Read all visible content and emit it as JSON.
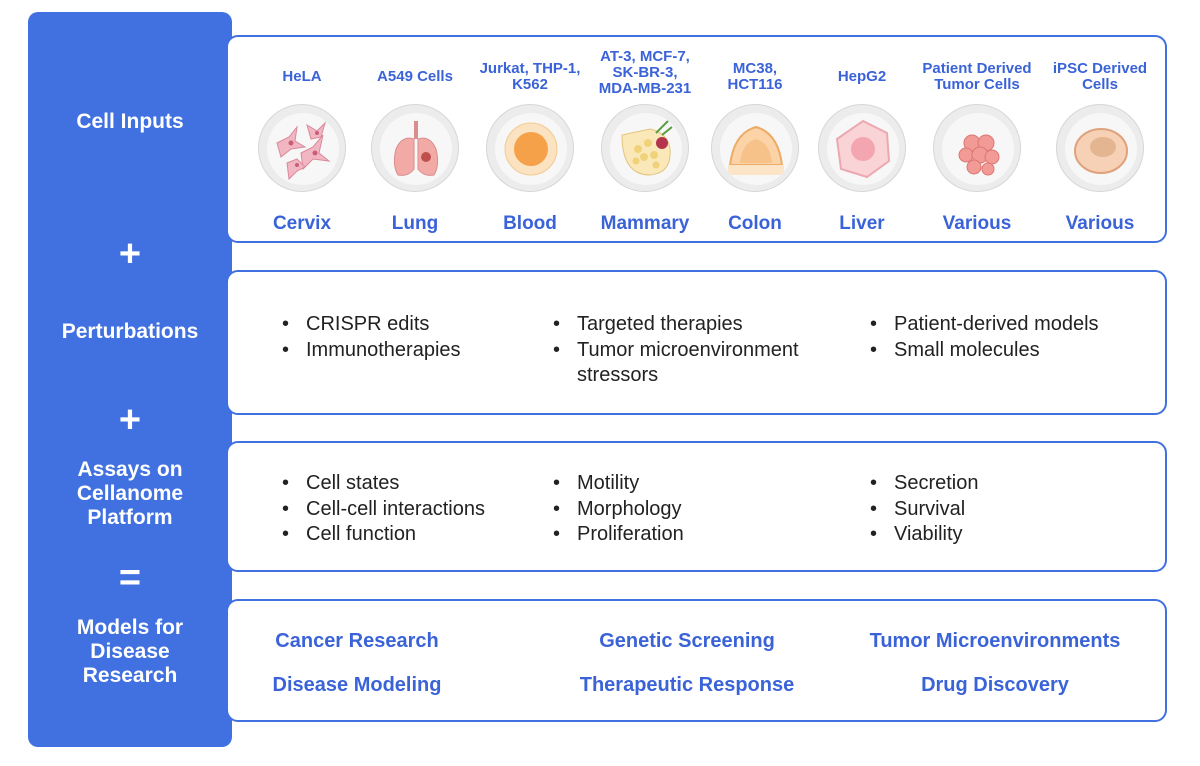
{
  "sections": {
    "cell_inputs": "Cell Inputs",
    "perturbations": "Perturbations",
    "assays": "Assays on\nCellanome\nPlatform",
    "models": "Models for\nDisease\nResearch"
  },
  "operators": {
    "plus1": "+",
    "plus2": "+",
    "equals": "="
  },
  "cells": [
    {
      "name": "HeLA",
      "organ": "Cervix",
      "icon": "hela-cells-icon"
    },
    {
      "name": "A549 Cells",
      "organ": "Lung",
      "icon": "lung-icon"
    },
    {
      "name": "Jurkat, THP-1,\nK562",
      "organ": "Blood",
      "icon": "blood-cell-icon"
    },
    {
      "name": "AT-3, MCF-7,\nSK-BR-3,\nMDA-MB-231",
      "organ": "Mammary",
      "icon": "mammary-gland-icon"
    },
    {
      "name": "MC38,\nHCT116",
      "organ": "Colon",
      "icon": "colon-icon"
    },
    {
      "name": "HepG2",
      "organ": "Liver",
      "icon": "liver-cell-icon"
    },
    {
      "name": "Patient Derived\nTumor Cells",
      "organ": "Various",
      "icon": "tumor-cells-icon"
    },
    {
      "name": "iPSC Derived\nCells",
      "organ": "Various",
      "icon": "ipsc-cell-icon"
    }
  ],
  "perturbations": [
    [
      "CRISPR edits",
      "Immunotherapies"
    ],
    [
      "Targeted therapies",
      "Tumor microenvironment\nstressors"
    ],
    [
      "Patient-derived models",
      "Small molecules"
    ]
  ],
  "assays": [
    [
      "Cell states",
      "Cell-cell interactions",
      "Cell function"
    ],
    [
      "Motility",
      "Morphology",
      "Proliferation"
    ],
    [
      "Secretion",
      "Survival",
      "Viability"
    ]
  ],
  "models": [
    [
      "Cancer Research",
      "Disease Modeling"
    ],
    [
      "Genetic Screening",
      "Therapeutic Response"
    ],
    [
      "Tumor Microenvironments",
      "Drug Discovery"
    ]
  ],
  "colors": {
    "accent": "#4171e0",
    "text_accent": "#3b63d8",
    "body_text": "#222222"
  }
}
